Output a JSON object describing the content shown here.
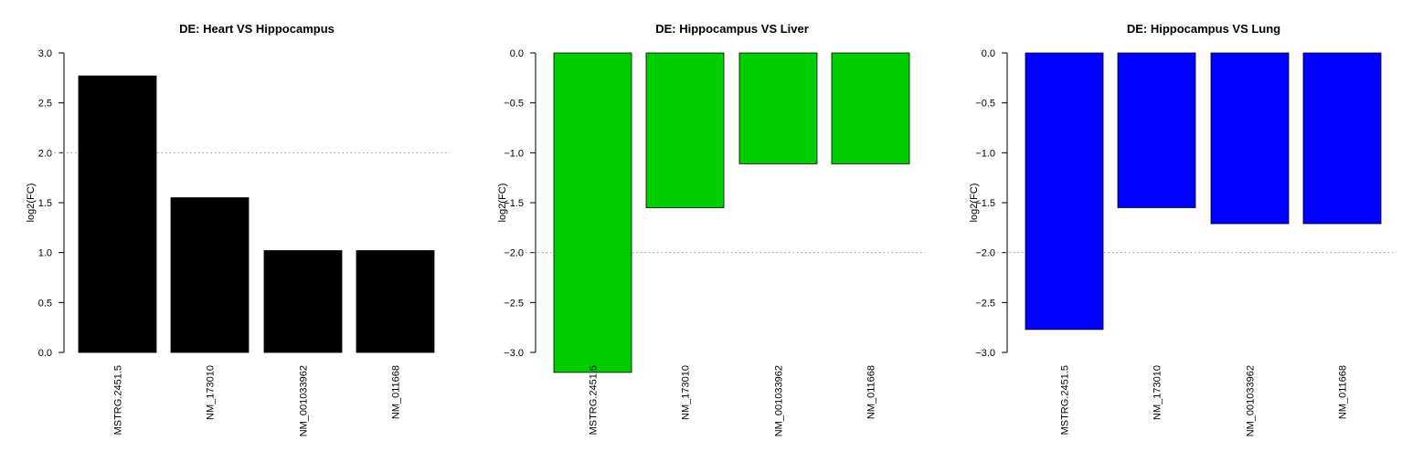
{
  "chart_data": [
    {
      "type": "bar",
      "title": "DE: Heart VS Hippocampus",
      "ylabel": "log2(FC)",
      "xlabel": "",
      "categories": [
        "MSTRG.2451.5",
        "NM_173010",
        "NM_001033962",
        "NM_011668"
      ],
      "values": [
        2.77,
        1.55,
        1.02,
        1.02
      ],
      "ylim": [
        0,
        3
      ],
      "yticks": [
        0.0,
        0.5,
        1.0,
        1.5,
        2.0,
        2.5,
        3.0
      ],
      "ytick_labels": [
        "0.0",
        "0.5",
        "1.0",
        "1.5",
        "2.0",
        "2.5",
        "3.0"
      ],
      "reference_line": 2.0,
      "bar_color": "#000000",
      "grid": false
    },
    {
      "type": "bar",
      "title": "DE: Hippocampus VS Liver",
      "ylabel": "log2(FC)",
      "xlabel": "",
      "categories": [
        "MSTRG.2451.5",
        "NM_173010",
        "NM_001033962",
        "NM_011668"
      ],
      "values": [
        -3.2,
        -1.55,
        -1.11,
        -1.11
      ],
      "ylim": [
        -3,
        0
      ],
      "yticks": [
        0.0,
        -0.5,
        -1.0,
        -1.5,
        -2.0,
        -2.5,
        -3.0
      ],
      "ytick_labels": [
        "0.0",
        "−0.5",
        "−1.0",
        "−1.5",
        "−2.0",
        "−2.5",
        "−3.0"
      ],
      "reference_line": -2.0,
      "bar_color": "#00cd00",
      "grid": false
    },
    {
      "type": "bar",
      "title": "DE: Hippocampus VS Lung",
      "ylabel": "log2(FC)",
      "xlabel": "",
      "categories": [
        "MSTRG.2451.5",
        "NM_173010",
        "NM_001033962",
        "NM_011668"
      ],
      "values": [
        -2.77,
        -1.55,
        -1.71,
        -1.71
      ],
      "ylim": [
        -3,
        0
      ],
      "yticks": [
        0.0,
        -0.5,
        -1.0,
        -1.5,
        -2.0,
        -2.5,
        -3.0
      ],
      "ytick_labels": [
        "0.0",
        "−0.5",
        "−1.0",
        "−1.5",
        "−2.0",
        "−2.5",
        "−3.0"
      ],
      "reference_line": -2.0,
      "bar_color": "#0000ff",
      "grid": false
    }
  ]
}
